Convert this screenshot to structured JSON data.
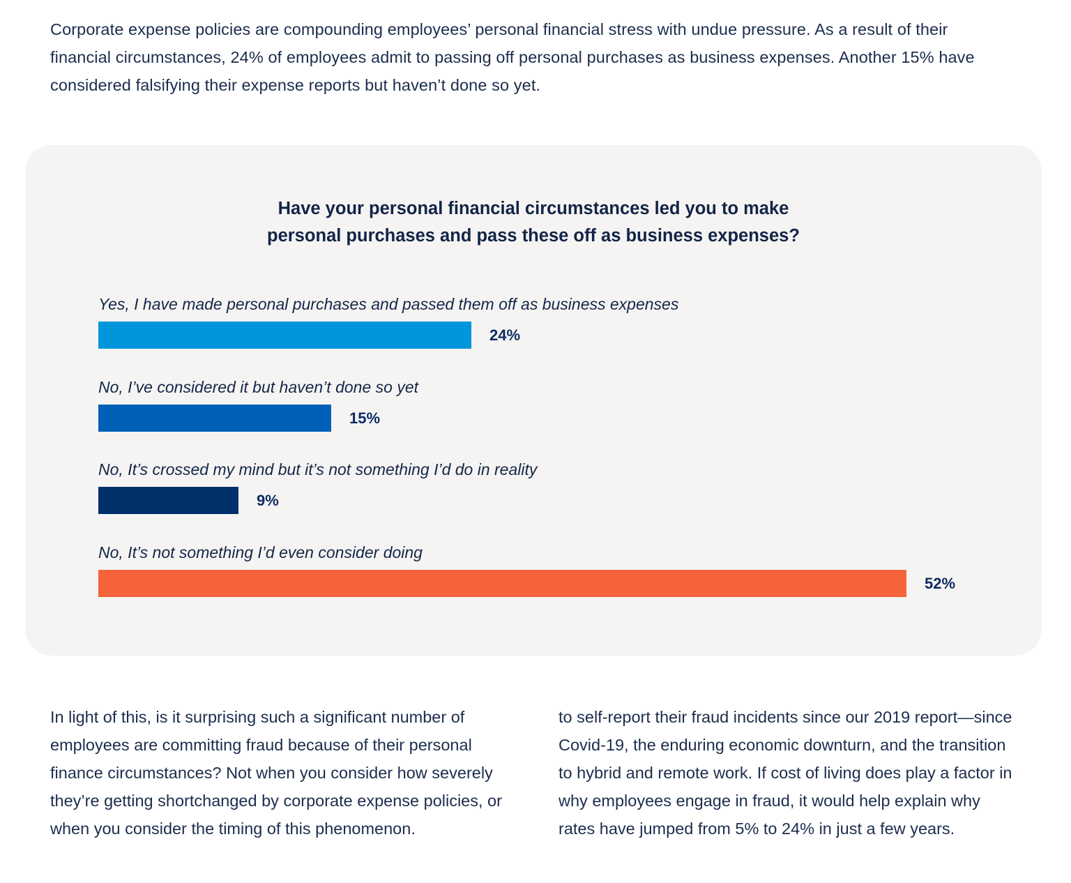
{
  "intro": {
    "text": "Corporate expense policies are compounding employees’ personal financial stress with undue pressure. As a result of their financial circumstances, 24% of employees admit to passing off personal purchases as business expenses. Another 15% have considered falsifying their expense reports but haven’t done so yet."
  },
  "chart_data": {
    "type": "bar",
    "orientation": "horizontal",
    "title": "Have your personal financial circumstances led you to make personal purchases and pass these off as business expenses?",
    "title_lines": [
      "Have your personal financial circumstances led you to make",
      "personal purchases and pass these off as business expenses?"
    ],
    "xlabel": "",
    "ylabel": "",
    "xlim": [
      0,
      52
    ],
    "grid": false,
    "unit": "%",
    "categories": [
      "Yes, I have made personal purchases and passed them off as business expenses",
      "No, I’ve considered it but haven’t done so yet",
      "No, It’s crossed my mind but it’s not something I’d do in reality",
      "No, It’s not something I’d even consider doing"
    ],
    "values": [
      24,
      15,
      9,
      52
    ],
    "value_labels": [
      "24%",
      "15%",
      "9%",
      "52%"
    ],
    "colors": [
      "#0096dc",
      "#0060b8",
      "#002f6a",
      "#f5633b"
    ]
  },
  "body": {
    "left_column": "In light of this, is it surprising such a significant number of employees are committing fraud because of their personal finance circumstances? Not when you consider how severely they’re getting shortchanged by corporate expense policies, or when you consider the timing of this phenomenon.",
    "right_column": "to self-report their fraud incidents since our 2019 report—since Covid-19, the enduring economic downturn, and the transition to hybrid and remote work. If cost of living does play a factor in why employees engage in fraud, it would help explain why rates have jumped from 5% to 24% in just a few years."
  }
}
